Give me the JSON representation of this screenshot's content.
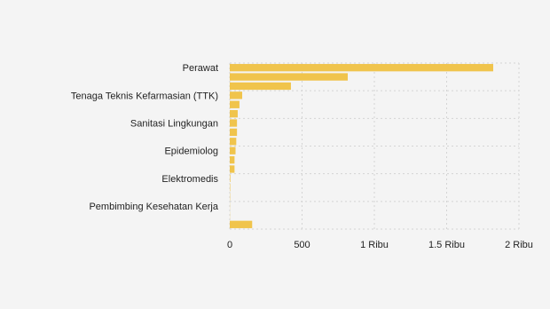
{
  "chart_data": {
    "type": "hbar",
    "categories": [
      "Perawat",
      null,
      null,
      "Tenaga Teknis Kefarmasian (TTK)",
      null,
      null,
      "Sanitasi Lingkungan",
      null,
      null,
      "Epidemiolog",
      null,
      null,
      "Elektromedis",
      null,
      null,
      "Pembimbing Kesehatan Kerja",
      null,
      null
    ],
    "values": [
      1822,
      816,
      423,
      86,
      67,
      55,
      50,
      50,
      45,
      40,
      33,
      33,
      4,
      3,
      2,
      1,
      1,
      155
    ],
    "color": "#f0c44c",
    "xlim": [
      0,
      2000
    ],
    "xticks": [
      0,
      500,
      {
        "value": 1000,
        "label": "1 Ribu"
      },
      {
        "value": 1500,
        "label": "1.5 Ribu"
      },
      {
        "value": 2000,
        "label": "2 Ribu"
      }
    ],
    "grid": true
  }
}
